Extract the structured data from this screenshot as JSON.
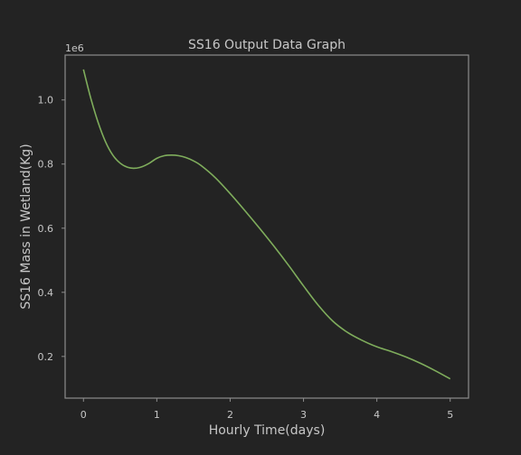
{
  "chart_data": {
    "type": "line",
    "title": "SS16 Output Data Graph",
    "xlabel": "Hourly Time(days)",
    "ylabel": "SS16 Mass in Wetland(Kg)",
    "y_offset_label": "1e6",
    "xlim": [
      -0.25,
      5.25
    ],
    "ylim": [
      0.07,
      1.14
    ],
    "x_ticks": [
      0,
      1,
      2,
      3,
      4,
      5
    ],
    "x_tick_labels": [
      "0",
      "1",
      "2",
      "3",
      "4",
      "5"
    ],
    "y_ticks": [
      0.2,
      0.4,
      0.6,
      0.8,
      1.0
    ],
    "y_tick_labels": [
      "0.2",
      "0.4",
      "0.6",
      "0.8",
      "1.0"
    ],
    "grid": false,
    "series": [
      {
        "color": "#7fad5c",
        "x": [
          0,
          0.1,
          0.2,
          0.3,
          0.4,
          0.5,
          0.6,
          0.7,
          0.8,
          0.9,
          1.0,
          1.1,
          1.2,
          1.3,
          1.4,
          1.5,
          1.6,
          1.8,
          2.0,
          2.2,
          2.4,
          2.6,
          2.8,
          3.0,
          3.2,
          3.4,
          3.6,
          3.8,
          4.0,
          4.2,
          4.4,
          4.6,
          4.8,
          5.0
        ],
        "y": [
          1.095,
          1.005,
          0.93,
          0.87,
          0.828,
          0.803,
          0.79,
          0.787,
          0.792,
          0.803,
          0.818,
          0.826,
          0.828,
          0.826,
          0.82,
          0.81,
          0.796,
          0.757,
          0.708,
          0.655,
          0.6,
          0.543,
          0.483,
          0.42,
          0.36,
          0.31,
          0.275,
          0.25,
          0.23,
          0.215,
          0.198,
          0.178,
          0.155,
          0.13
        ]
      }
    ]
  },
  "colors": {
    "background": "#232323",
    "axes": "#8c8c8c",
    "text": "#c7c7c7",
    "line": "#7fad5c"
  }
}
